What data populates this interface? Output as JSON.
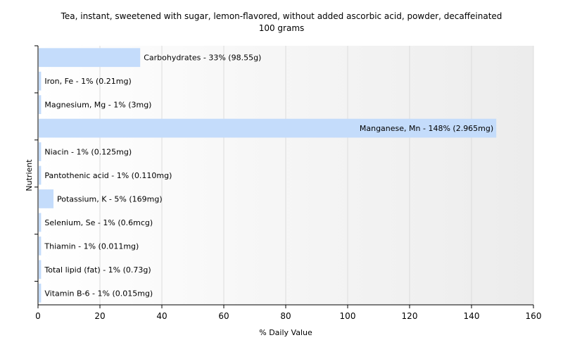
{
  "chart_data": {
    "type": "bar",
    "orientation": "horizontal",
    "title_line1": "Tea, instant, sweetened with sugar, lemon-flavored, without added ascorbic acid, powder,  decaffeinated",
    "title_line2": "100 grams",
    "xlabel": "% Daily Value",
    "ylabel": "Nutrient",
    "xlim": [
      0,
      160
    ],
    "x_ticks": [
      0,
      20,
      40,
      60,
      80,
      100,
      120,
      140,
      160
    ],
    "grid": true,
    "categories": [
      "Carbohydrates",
      "Iron, Fe",
      "Magnesium, Mg",
      "Manganese, Mn",
      "Niacin",
      "Pantothenic acid",
      "Potassium, K",
      "Selenium, Se",
      "Thiamin",
      "Total lipid (fat)",
      "Vitamin B-6"
    ],
    "values": [
      33,
      1,
      1,
      148,
      1,
      1,
      5,
      1,
      1,
      1,
      1
    ],
    "bar_labels": [
      "Carbohydrates - 33% (98.55g)",
      "Iron, Fe - 1% (0.21mg)",
      "Magnesium, Mg - 1% (3mg)",
      "Manganese, Mn - 148% (2.965mg)",
      "Niacin - 1% (0.125mg)",
      "Pantothenic acid - 1% (0.110mg)",
      "Potassium, K - 5% (169mg)",
      "Selenium, Se - 1% (0.6mcg)",
      "Thiamin - 1% (0.011mg)",
      "Total lipid (fat) - 1% (0.73g)",
      "Vitamin B-6 - 1% (0.015mg)"
    ],
    "colors": {
      "bar": "#c4dcfb",
      "grid": "#dcdcdc",
      "plot_bg_left": "#ffffff",
      "plot_bg_right": "#ececec",
      "axis": "#000000"
    }
  }
}
